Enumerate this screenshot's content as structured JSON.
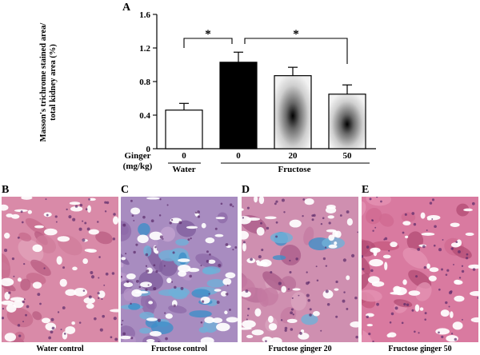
{
  "chart_data": {
    "type": "bar",
    "panel_label": "A",
    "ylabel_lines": [
      "Masson's trichrome stained area/",
      "total kidney area (%)"
    ],
    "ylim": [
      0,
      1.6
    ],
    "yticks": [
      "0",
      "0.4",
      "0.8",
      "1.2",
      "1.6"
    ],
    "ytick_values": [
      0,
      0.4,
      0.8,
      1.2,
      1.6
    ],
    "row_labels": [
      "Ginger",
      "(mg/kg)"
    ],
    "categories": [
      "0",
      "0",
      "20",
      "50"
    ],
    "values": [
      0.46,
      1.03,
      0.87,
      0.65
    ],
    "errors": [
      0.08,
      0.12,
      0.1,
      0.11
    ],
    "bar_styles": [
      "white",
      "black",
      "gradient",
      "gradient"
    ],
    "group_labels": [
      "Water",
      "Fructose"
    ],
    "significance": [
      "*",
      "*"
    ]
  },
  "panels": [
    {
      "letter": "B",
      "caption": "Water control"
    },
    {
      "letter": "C",
      "caption": "Fructose  control"
    },
    {
      "letter": "D",
      "caption": "Fructose ginger 20"
    },
    {
      "letter": "E",
      "caption": "Fructose ginger 50"
    }
  ]
}
